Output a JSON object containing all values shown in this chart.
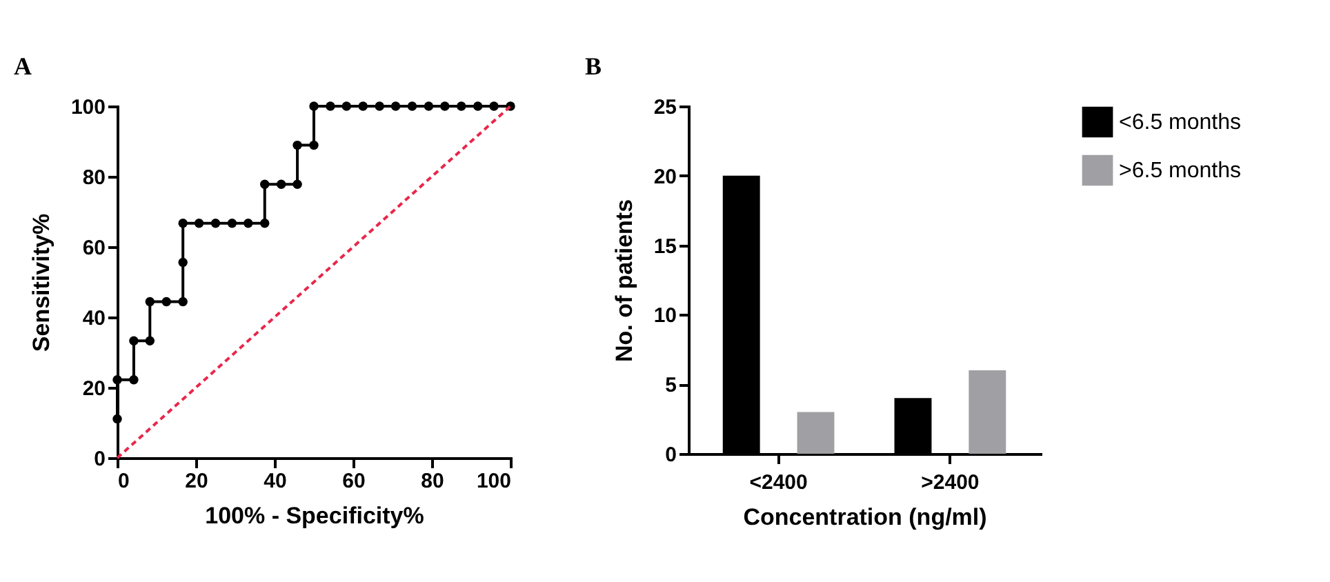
{
  "chart_data": [
    {
      "type": "line",
      "title": "A",
      "xlabel": "100% - Specificity%",
      "ylabel": "Sensitivity%",
      "xlim": [
        0,
        100
      ],
      "ylim": [
        0,
        100
      ],
      "xticks": [
        0,
        20,
        40,
        60,
        80,
        100
      ],
      "yticks": [
        0,
        20,
        40,
        60,
        80,
        100
      ],
      "grid": false,
      "series": [
        {
          "color": "#000000",
          "marker": "circle",
          "line_style": "solid",
          "x": [
            0,
            0,
            4.2,
            4.2,
            8.3,
            8.3,
            12.5,
            16.7,
            16.7,
            16.7,
            20.8,
            25,
            29.2,
            33.3,
            37.5,
            37.5,
            41.7,
            45.8,
            45.8,
            50,
            50,
            54.2,
            58.3,
            62.5,
            66.7,
            70.8,
            75,
            79.2,
            83.3,
            87.5,
            91.7,
            95.8,
            100
          ],
          "values": [
            11.1,
            22.2,
            22.2,
            33.3,
            33.3,
            44.4,
            44.4,
            44.4,
            55.6,
            66.7,
            66.7,
            66.7,
            66.7,
            66.7,
            66.7,
            77.8,
            77.8,
            77.8,
            88.9,
            88.9,
            100,
            100,
            100,
            100,
            100,
            100,
            100,
            100,
            100,
            100,
            100,
            100,
            100
          ]
        },
        {
          "color": "#e8274b",
          "marker": "none",
          "line_style": "dashed",
          "x": [
            0,
            100
          ],
          "values": [
            0,
            100
          ]
        }
      ]
    },
    {
      "type": "bar",
      "title": "B",
      "xlabel": "Concentration (ng/ml)",
      "ylabel": "No. of patients",
      "categories": [
        "<2400",
        ">2400"
      ],
      "ylim": [
        0,
        25
      ],
      "yticks": [
        0,
        5,
        10,
        15,
        20,
        25
      ],
      "grid": false,
      "legend": "right",
      "series": [
        {
          "name": "<6.5 months",
          "color": "#000000",
          "values": [
            20,
            4
          ]
        },
        {
          "name": ">6.5 months",
          "color": "#a0a0a4",
          "values": [
            3,
            6
          ]
        }
      ]
    }
  ]
}
